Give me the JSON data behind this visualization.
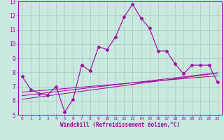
{
  "x_main": [
    0,
    1,
    2,
    3,
    4,
    5,
    6,
    7,
    8,
    9,
    10,
    11,
    12,
    13,
    14,
    15,
    16,
    17,
    18,
    19,
    20,
    21,
    22,
    23
  ],
  "y_main": [
    7.7,
    6.8,
    6.5,
    6.4,
    7.0,
    5.2,
    6.1,
    8.5,
    8.1,
    9.8,
    9.6,
    10.5,
    11.9,
    12.8,
    11.8,
    11.1,
    9.5,
    9.5,
    8.6,
    7.9,
    8.5,
    8.5,
    8.5,
    7.3
  ],
  "y_line1": [
    6.6,
    6.65,
    6.7,
    6.75,
    6.8,
    6.85,
    6.9,
    6.95,
    7.0,
    7.05,
    7.1,
    7.15,
    7.2,
    7.25,
    7.3,
    7.35,
    7.4,
    7.45,
    7.5,
    7.55,
    7.6,
    7.65,
    7.7,
    7.75
  ],
  "y_line2": [
    6.35,
    6.42,
    6.49,
    6.56,
    6.63,
    6.7,
    6.77,
    6.84,
    6.91,
    6.98,
    7.05,
    7.12,
    7.19,
    7.26,
    7.33,
    7.4,
    7.47,
    7.54,
    7.61,
    7.68,
    7.75,
    7.82,
    7.89,
    7.96
  ],
  "y_line3": [
    6.1,
    6.18,
    6.26,
    6.34,
    6.42,
    6.5,
    6.58,
    6.66,
    6.74,
    6.82,
    6.9,
    6.98,
    7.06,
    7.14,
    7.22,
    7.3,
    7.38,
    7.46,
    7.54,
    7.62,
    7.7,
    7.78,
    7.86,
    7.94
  ],
  "line_color": "#a000a0",
  "bg_color": "#c8e8e0",
  "grid_color": "#a8c8c0",
  "text_color": "#a000a0",
  "xlabel": "Windchill (Refroidissement éolien,°C)",
  "ylim": [
    5,
    13
  ],
  "xlim": [
    -0.5,
    23.5
  ],
  "yticks": [
    5,
    6,
    7,
    8,
    9,
    10,
    11,
    12,
    13
  ],
  "xticks": [
    0,
    1,
    2,
    3,
    4,
    5,
    6,
    7,
    8,
    9,
    10,
    11,
    12,
    13,
    14,
    15,
    16,
    17,
    18,
    19,
    20,
    21,
    22,
    23
  ]
}
